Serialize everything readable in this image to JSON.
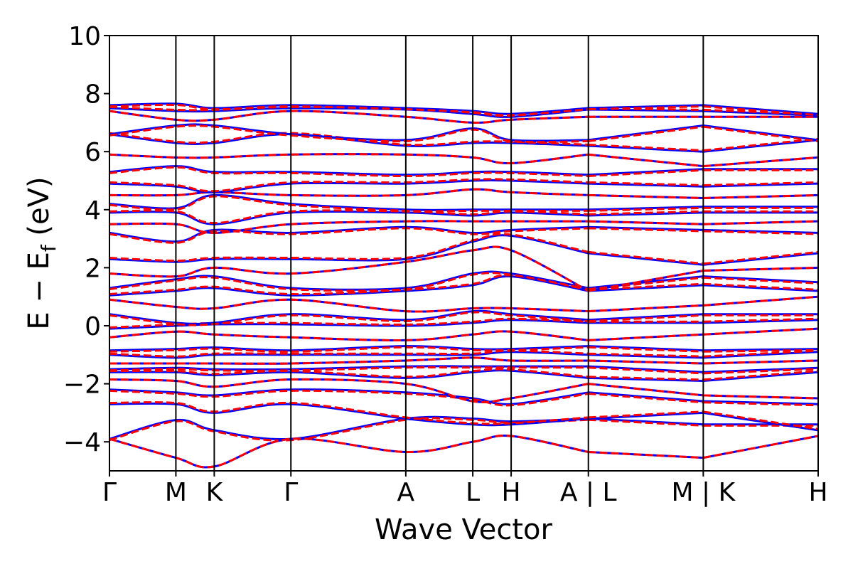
{
  "chart_data": {
    "type": "line",
    "title": "",
    "xlabel": "Wave Vector",
    "ylabel_main": "E − E",
    "ylabel_sub": "f",
    "ylabel_unit": " (eV)",
    "ylim": [
      -5,
      10
    ],
    "yticks": [
      -4,
      -2,
      0,
      2,
      4,
      6,
      8,
      10
    ],
    "ytick_labels": [
      "−4",
      "−2",
      "0",
      "2",
      "4",
      "6",
      "8",
      "10"
    ],
    "k_path": {
      "positions": [
        0.0,
        0.578,
        0.912,
        1.579,
        2.579,
        3.162,
        3.496,
        4.168,
        5.168,
        6.168
      ],
      "labels": [
        "Γ",
        "M",
        "K",
        "Γ",
        "A",
        "L",
        "H",
        "A | L",
        "M | K",
        "H"
      ],
      "breaks_at": [
        4.168,
        5.168
      ]
    },
    "grid": false,
    "legend": "none",
    "series": [
      {
        "style": "solid",
        "color": "#0000ff",
        "width": 3
      },
      {
        "style": "dashed",
        "color": "#ff0000",
        "width": 3
      }
    ],
    "band_energies_at_k_points": [
      [
        -3.9,
        -3.25,
        -3.6,
        -3.9,
        -3.2,
        -3.2,
        -3.3,
        -3.2,
        -3.4,
        -3.4
      ],
      [
        -3.9,
        -4.55,
        -4.85,
        -3.9,
        -4.35,
        -4.0,
        -3.8,
        -4.35,
        -4.55,
        -3.8
      ],
      [
        -2.7,
        -2.7,
        -3.0,
        -2.7,
        -3.2,
        -3.4,
        -3.4,
        -3.2,
        -3.0,
        -3.6
      ],
      [
        -2.2,
        -2.3,
        -2.4,
        -2.2,
        -2.3,
        -2.5,
        -2.7,
        -2.3,
        -2.6,
        -2.7
      ],
      [
        -1.85,
        -1.9,
        -2.1,
        -1.85,
        -2.0,
        -2.6,
        -2.5,
        -2.0,
        -2.4,
        -2.5
      ],
      [
        -1.6,
        -1.6,
        -1.7,
        -1.6,
        -1.8,
        -1.6,
        -1.55,
        -1.8,
        -1.9,
        -1.6
      ],
      [
        -1.5,
        -1.45,
        -1.5,
        -1.5,
        -1.4,
        -1.4,
        -1.4,
        -1.4,
        -1.6,
        -1.45
      ],
      [
        -1.3,
        -1.3,
        -1.3,
        -1.3,
        -1.2,
        -1.1,
        -1.2,
        -1.2,
        -1.3,
        -1.2
      ],
      [
        -1.0,
        -1.1,
        -1.0,
        -1.0,
        -1.0,
        -1.0,
        -0.9,
        -1.0,
        -1.1,
        -0.9
      ],
      [
        -0.85,
        -0.8,
        -0.75,
        -0.85,
        -0.7,
        -0.8,
        -0.8,
        -0.7,
        -0.85,
        -0.8
      ],
      [
        -0.4,
        -0.2,
        -0.3,
        -0.4,
        -0.5,
        -0.3,
        -0.2,
        -0.5,
        -0.3,
        -0.1
      ],
      [
        -0.1,
        0.0,
        0.05,
        0.05,
        0.0,
        0.1,
        0.2,
        0.1,
        0.1,
        0.2
      ],
      [
        0.4,
        0.1,
        0.1,
        0.4,
        0.2,
        0.5,
        0.4,
        0.2,
        0.4,
        0.4
      ],
      [
        0.9,
        0.65,
        0.6,
        0.9,
        0.5,
        0.6,
        0.6,
        0.5,
        0.7,
        1.0
      ],
      [
        1.05,
        1.2,
        1.3,
        1.05,
        1.2,
        1.4,
        1.7,
        1.2,
        1.4,
        1.2
      ],
      [
        1.3,
        1.6,
        1.7,
        1.3,
        1.3,
        1.8,
        1.8,
        1.3,
        1.7,
        1.5
      ],
      [
        1.8,
        1.7,
        2.0,
        1.8,
        2.2,
        2.6,
        2.6,
        1.2,
        1.9,
        2.0
      ],
      [
        2.3,
        2.2,
        2.3,
        2.3,
        2.3,
        2.9,
        3.1,
        2.5,
        2.1,
        2.5
      ],
      [
        3.2,
        2.9,
        3.3,
        3.2,
        3.4,
        3.2,
        3.3,
        3.4,
        3.3,
        3.2
      ],
      [
        3.5,
        3.5,
        3.2,
        3.5,
        3.6,
        3.6,
        3.6,
        3.6,
        3.5,
        3.6
      ],
      [
        3.9,
        3.9,
        3.5,
        3.9,
        3.9,
        3.8,
        3.9,
        3.8,
        3.9,
        3.9
      ],
      [
        4.2,
        4.05,
        4.5,
        4.2,
        4.0,
        4.0,
        4.0,
        4.0,
        4.1,
        4.1
      ],
      [
        4.5,
        4.5,
        4.6,
        4.5,
        4.5,
        4.7,
        4.6,
        4.5,
        4.4,
        4.5
      ],
      [
        4.9,
        4.8,
        4.6,
        4.9,
        4.9,
        5.0,
        5.0,
        4.9,
        4.8,
        4.9
      ],
      [
        5.3,
        5.5,
        5.3,
        5.3,
        5.2,
        5.3,
        5.3,
        5.2,
        5.4,
        5.4
      ],
      [
        5.9,
        5.8,
        5.8,
        5.9,
        5.9,
        5.8,
        5.6,
        5.9,
        5.5,
        5.8
      ],
      [
        6.6,
        6.3,
        6.3,
        6.6,
        6.2,
        6.3,
        6.3,
        6.2,
        6.0,
        6.4
      ],
      [
        6.6,
        6.9,
        6.9,
        6.6,
        6.4,
        6.8,
        6.4,
        6.4,
        6.9,
        6.4
      ],
      [
        7.4,
        7.1,
        7.1,
        7.4,
        7.2,
        7.0,
        7.1,
        7.2,
        7.2,
        7.2
      ],
      [
        7.5,
        7.4,
        7.4,
        7.5,
        7.45,
        7.3,
        7.2,
        7.45,
        7.4,
        7.25
      ],
      [
        7.6,
        7.65,
        7.5,
        7.6,
        7.5,
        7.4,
        7.3,
        7.5,
        7.6,
        7.3
      ]
    ]
  }
}
